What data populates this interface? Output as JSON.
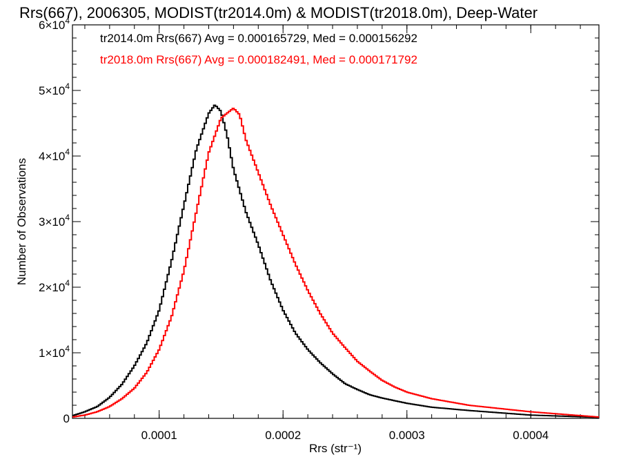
{
  "chart_data": {
    "type": "line",
    "title": "Rrs(667), 2006305, MODIST(tr2014.0m) & MODIST(tr2018.0m), Deep-Water",
    "xlabel": "Rrs (str⁻¹)",
    "ylabel": "Number of Observations",
    "xlim": [
      3e-05,
      0.000455
    ],
    "ylim": [
      0,
      60000
    ],
    "x_ticks": [
      {
        "value": 0.0001,
        "label": "0.0001"
      },
      {
        "value": 0.0002,
        "label": "0.0002"
      },
      {
        "value": 0.0003,
        "label": "0.0003"
      },
      {
        "value": 0.0004,
        "label": "0.0004"
      }
    ],
    "y_ticks": [
      {
        "value": 0,
        "mant": "0",
        "exp": ""
      },
      {
        "value": 10000,
        "mant": "1×10",
        "exp": "4"
      },
      {
        "value": 20000,
        "mant": "2×10",
        "exp": "4"
      },
      {
        "value": 30000,
        "mant": "3×10",
        "exp": "4"
      },
      {
        "value": 40000,
        "mant": "4×10",
        "exp": "4"
      },
      {
        "value": 50000,
        "mant": "5×10",
        "exp": "4"
      },
      {
        "value": 60000,
        "mant": "6×10",
        "exp": "4"
      }
    ],
    "legend_placement": "top-left",
    "series": [
      {
        "label": "tr2014.0m Rrs(667) Avg = 0.000165729, Med = 0.000156292",
        "color": "#000000",
        "x": [
          3e-05,
          4e-05,
          5e-05,
          6e-05,
          7e-05,
          8e-05,
          9e-05,
          0.0001,
          0.00011,
          0.00012,
          0.00013,
          0.00014,
          0.000145,
          0.00015,
          0.000155,
          0.00016,
          0.00017,
          0.00018,
          0.00019,
          0.0002,
          0.00021,
          0.00022,
          0.00023,
          0.00024,
          0.00025,
          0.00026,
          0.00027,
          0.00028,
          0.0003,
          0.00032,
          0.00035,
          0.0004,
          0.000455
        ],
        "y": [
          400,
          1000,
          1800,
          3200,
          5200,
          8000,
          11500,
          16500,
          24000,
          32500,
          41000,
          46500,
          47800,
          46800,
          43000,
          38000,
          31500,
          26500,
          21000,
          16500,
          13000,
          10500,
          8500,
          6800,
          5300,
          4400,
          3600,
          3100,
          2300,
          1700,
          1200,
          500,
          150
        ]
      },
      {
        "label": "tr2018.0m Rrs(667) Avg = 0.000182491, Med = 0.000171792",
        "color": "#ff0000",
        "x": [
          3e-05,
          4e-05,
          5e-05,
          6e-05,
          7e-05,
          8e-05,
          9e-05,
          0.0001,
          0.00011,
          0.00012,
          0.00013,
          0.00014,
          0.00015,
          0.00016,
          0.000165,
          0.00017,
          0.00018,
          0.00019,
          0.0002,
          0.00021,
          0.00022,
          0.00023,
          0.00024,
          0.00025,
          0.00026,
          0.00027,
          0.00028,
          0.00029,
          0.0003,
          0.00032,
          0.00035,
          0.0004,
          0.000455
        ],
        "y": [
          200,
          500,
          1000,
          1800,
          3000,
          4600,
          7000,
          10500,
          15500,
          22500,
          31500,
          40500,
          45800,
          47300,
          46300,
          42500,
          37500,
          32500,
          28000,
          23500,
          19500,
          16000,
          13000,
          10800,
          8700,
          7200,
          5800,
          4800,
          4000,
          3000,
          2000,
          1000,
          200
        ]
      }
    ]
  }
}
